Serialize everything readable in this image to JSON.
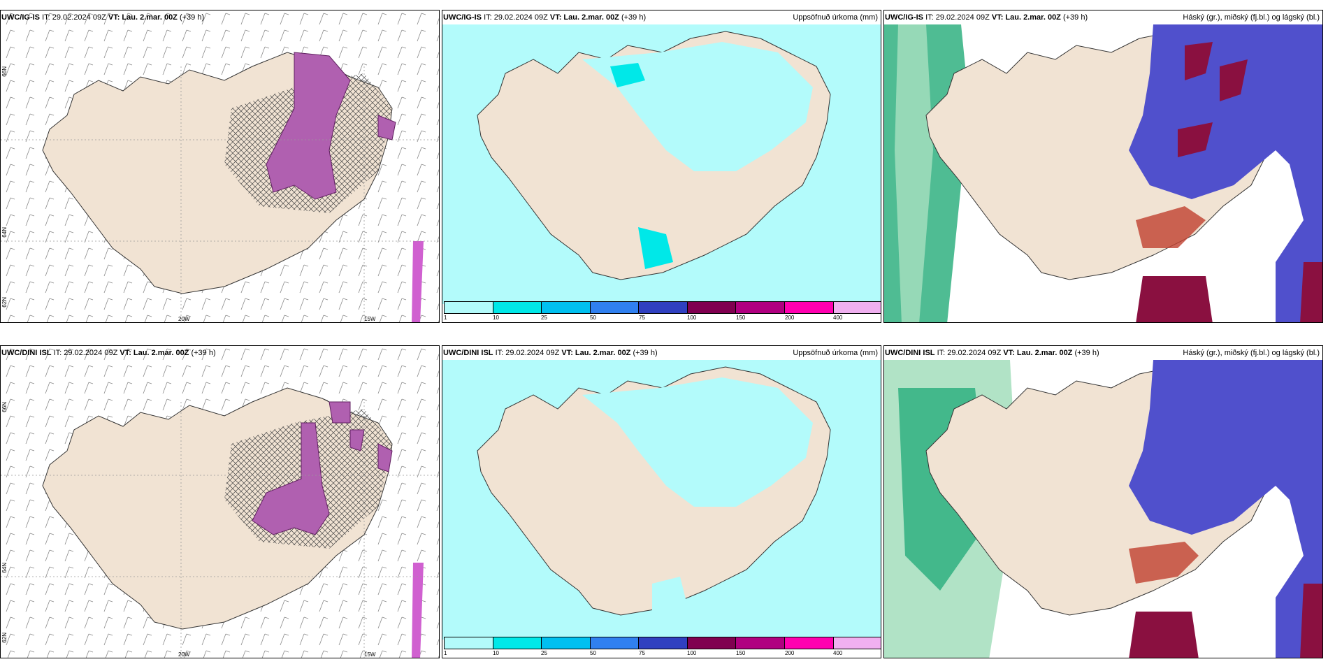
{
  "rows": [
    {
      "model": "UWC/IG-IS",
      "it": "IT: 29.02.2024 09Z",
      "vt_label": "VT:",
      "vt": "Lau. 2.mar. 00Z",
      "lead": "(+39 h)"
    },
    {
      "model": "UWC/DINI ISL",
      "it": "IT: 29.02.2024 09Z",
      "vt_label": "VT:",
      "vt": "Lau. 2.mar. 00Z",
      "lead": "(+39 h)"
    }
  ],
  "titles": {
    "precip": "Uppsöfnuð úrkoma (mm)",
    "cloud": "Háský (gr.), miðský (fj.bl.) og lágský (bl.)"
  },
  "axis_labels": {
    "lon1": "20W",
    "lon2": "15W",
    "lat1": "66N",
    "lat2": "64N",
    "lat3": "62N"
  },
  "colorbar": {
    "ticks": [
      "1",
      "10",
      "25",
      "50",
      "75",
      "100",
      "150",
      "200",
      "400"
    ],
    "colors": [
      "#b3fbfb",
      "#00e8e8",
      "#00c0f0",
      "#3080f0",
      "#3040c0",
      "#800050",
      "#b00080",
      "#ff00b0",
      "#f0b0f0"
    ]
  },
  "colors": {
    "land": "#f1e3d3",
    "sea_precip": "#b3fbfb",
    "precip_mid": "#00e8e8",
    "mid_cloud": "#5050cc",
    "low_cloud": "#8a1040",
    "high_cloud": "#30b080",
    "snow_purple": "#b060b0"
  }
}
